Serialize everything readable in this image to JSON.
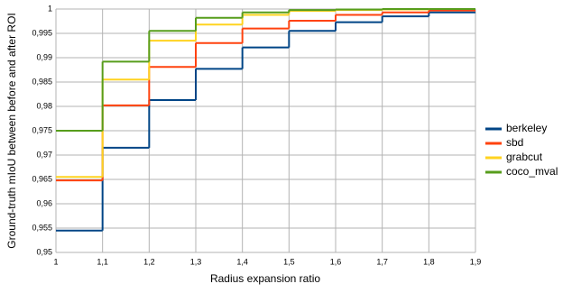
{
  "chart_data": {
    "type": "step",
    "x_label": "Radius expansion ratio",
    "y_label": "Ground-truth mIoU between before and after ROI",
    "x": [
      1,
      1.1,
      1.2,
      1.3,
      1.4,
      1.5,
      1.6,
      1.7,
      1.8
    ],
    "xlim": [
      1,
      1.9
    ],
    "xticks": [
      1,
      {
        "value": 1.1,
        "label": "1,1"
      },
      {
        "value": 1.2,
        "label": "1,2"
      },
      {
        "value": 1.3,
        "label": "1,3"
      },
      {
        "value": 1.4,
        "label": "1,4"
      },
      {
        "value": 1.5,
        "label": "1,5"
      },
      {
        "value": 1.6,
        "label": "1,6"
      },
      {
        "value": 1.7,
        "label": "1,7"
      },
      {
        "value": 1.8,
        "label": "1,8"
      },
      {
        "value": 1.9,
        "label": "1,9"
      }
    ],
    "ylim": [
      0.95,
      1
    ],
    "yticks": [
      {
        "value": 0.95,
        "label": "0,95"
      },
      {
        "value": 0.955,
        "label": "0,955"
      },
      {
        "value": 0.96,
        "label": "0,96"
      },
      {
        "value": 0.965,
        "label": "0,965"
      },
      {
        "value": 0.97,
        "label": "0,97"
      },
      {
        "value": 0.975,
        "label": "0,975"
      },
      {
        "value": 0.98,
        "label": "0,98"
      },
      {
        "value": 0.985,
        "label": "0,985"
      },
      {
        "value": 0.99,
        "label": "0,99"
      },
      {
        "value": 0.995,
        "label": "0,995"
      },
      1
    ],
    "grid": true,
    "legend": "right",
    "series": [
      {
        "name": "berkeley",
        "color": "#004586",
        "values": [
          0.9545,
          0.9715,
          0.9813,
          0.9877,
          0.9921,
          0.9955,
          0.9973,
          0.9985,
          0.9993
        ]
      },
      {
        "name": "sbd",
        "color": "#ff420e",
        "values": [
          0.9648,
          0.9802,
          0.9881,
          0.993,
          0.996,
          0.9976,
          0.9988,
          0.9993,
          0.9997
        ]
      },
      {
        "name": "grabcut",
        "color": "#ffd320",
        "values": [
          0.9655,
          0.9855,
          0.9935,
          0.9968,
          0.9988,
          0.9996,
          0.9998,
          0.9999,
          1.0
        ]
      },
      {
        "name": "coco_mval",
        "color": "#579d1c",
        "values": [
          0.975,
          0.9892,
          0.9955,
          0.9982,
          0.9993,
          0.9998,
          0.9999,
          1.0,
          1.0
        ]
      }
    ]
  }
}
